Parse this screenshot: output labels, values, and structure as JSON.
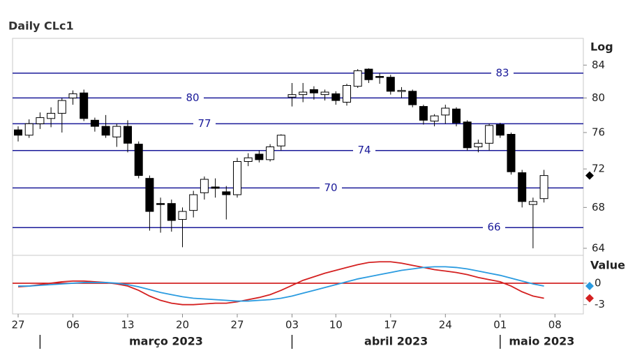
{
  "chart_data": [
    {
      "type": "candlestick",
      "title": "Daily CLc1",
      "y_label": "Log",
      "log_scale": true,
      "x": [
        "2023-02-27",
        "2023-02-28",
        "2023-03-01",
        "2023-03-02",
        "2023-03-03",
        "2023-03-06",
        "2023-03-07",
        "2023-03-08",
        "2023-03-09",
        "2023-03-10",
        "2023-03-13",
        "2023-03-14",
        "2023-03-15",
        "2023-03-16",
        "2023-03-17",
        "2023-03-20",
        "2023-03-21",
        "2023-03-22",
        "2023-03-23",
        "2023-03-24",
        "2023-03-27",
        "2023-03-28",
        "2023-03-29",
        "2023-03-30",
        "2023-03-31",
        "2023-04-03",
        "2023-04-04",
        "2023-04-05",
        "2023-04-06",
        "2023-04-10",
        "2023-04-11",
        "2023-04-12",
        "2023-04-13",
        "2023-04-14",
        "2023-04-17",
        "2023-04-18",
        "2023-04-19",
        "2023-04-20",
        "2023-04-21",
        "2023-04-24",
        "2023-04-25",
        "2023-04-26",
        "2023-04-27",
        "2023-04-28",
        "2023-05-01",
        "2023-05-02",
        "2023-05-03",
        "2023-05-04",
        "2023-05-05"
      ],
      "open": [
        76.3,
        75.7,
        77.0,
        77.6,
        78.2,
        80.0,
        80.6,
        77.4,
        76.7,
        75.5,
        76.7,
        74.7,
        71.0,
        68.4,
        68.4,
        66.8,
        67.7,
        69.5,
        70.1,
        69.6,
        69.3,
        72.8,
        73.6,
        73.0,
        74.5,
        80.1,
        80.4,
        81.0,
        80.4,
        80.5,
        79.5,
        81.4,
        83.5,
        82.6,
        82.5,
        80.8,
        80.8,
        79.0,
        77.3,
        78.0,
        78.7,
        77.2,
        74.4,
        74.8,
        76.9,
        75.8,
        71.6,
        68.3,
        68.9
      ],
      "high": [
        76.7,
        77.5,
        78.3,
        78.9,
        80.0,
        80.9,
        81.0,
        77.7,
        78.0,
        77.0,
        77.4,
        75.0,
        71.3,
        69.0,
        68.8,
        68.0,
        69.7,
        71.2,
        71.0,
        70.2,
        73.2,
        73.7,
        74.0,
        74.7,
        75.8,
        81.8,
        81.8,
        81.4,
        81.0,
        80.8,
        81.7,
        83.5,
        83.6,
        83.0,
        82.8,
        81.3,
        81.0,
        79.2,
        78.1,
        79.2,
        78.9,
        77.4,
        75.2,
        77.0,
        77.1,
        76.0,
        71.9,
        69.0,
        71.9
      ],
      "low": [
        75.0,
        75.4,
        76.4,
        76.6,
        76.0,
        79.2,
        77.3,
        76.1,
        75.4,
        74.4,
        73.8,
        71.0,
        65.7,
        65.5,
        65.6,
        64.1,
        67.0,
        68.8,
        69.0,
        66.8,
        69.0,
        72.3,
        72.7,
        72.8,
        74.0,
        79.0,
        79.5,
        79.8,
        79.7,
        79.2,
        79.1,
        81.2,
        81.8,
        81.7,
        80.4,
        80.0,
        78.9,
        76.9,
        76.7,
        77.0,
        76.7,
        74.0,
        73.8,
        74.0,
        75.4,
        71.4,
        68.0,
        64.0,
        68.5
      ],
      "close": [
        75.7,
        77.0,
        77.7,
        78.2,
        79.7,
        80.5,
        77.6,
        76.7,
        75.7,
        76.7,
        74.8,
        71.3,
        67.6,
        68.3,
        66.7,
        67.6,
        69.3,
        70.9,
        69.96,
        69.3,
        72.8,
        73.2,
        73.0,
        74.4,
        75.7,
        80.4,
        80.7,
        80.6,
        80.7,
        79.7,
        81.5,
        83.3,
        82.2,
        82.5,
        80.8,
        80.9,
        79.2,
        77.4,
        77.9,
        78.8,
        77.1,
        74.3,
        74.8,
        76.8,
        75.7,
        71.7,
        68.6,
        68.6,
        71.3
      ],
      "up_color": "#ffffff",
      "down_color": "#000000",
      "ylim": [
        63.4,
        87.4
      ],
      "yticks": [
        64,
        68,
        72,
        76,
        80,
        84
      ],
      "levels": [
        83,
        80,
        77,
        74,
        70,
        66
      ],
      "level_color": "#1a1a99",
      "xticks": [
        {
          "value": "2023-02-27",
          "label": "27"
        },
        {
          "value": "2023-03-06",
          "label": "06"
        },
        {
          "value": "2023-03-13",
          "label": "13"
        },
        {
          "value": "2023-03-20",
          "label": "20"
        },
        {
          "value": "2023-03-27",
          "label": "27"
        },
        {
          "value": "2023-04-03",
          "label": "03"
        },
        {
          "value": "2023-04-10",
          "label": "10"
        },
        {
          "value": "2023-04-17",
          "label": "17"
        },
        {
          "value": "2023-04-24",
          "label": "24"
        },
        {
          "value": "2023-05-01",
          "label": "01"
        },
        {
          "value": "2023-05-08",
          "label": "08"
        }
      ],
      "months": [
        {
          "value": "2023-03",
          "label": "março 2023"
        },
        {
          "value": "2023-04",
          "label": "abril 2023"
        },
        {
          "value": "2023-05",
          "label": "maio 2023"
        }
      ]
    },
    {
      "type": "line",
      "y_label": "Value",
      "series": [
        {
          "color": "#d42020",
          "values": [
            -0.5,
            -0.4,
            -0.2,
            0.0,
            0.2,
            0.3,
            0.3,
            0.2,
            0.1,
            -0.1,
            -0.4,
            -1.0,
            -1.8,
            -2.4,
            -2.8,
            -3.0,
            -3.0,
            -2.9,
            -2.8,
            -2.8,
            -2.6,
            -2.3,
            -2.0,
            -1.6,
            -1.0,
            -0.3,
            0.4,
            0.9,
            1.4,
            1.8,
            2.2,
            2.6,
            2.9,
            3.0,
            3.0,
            2.8,
            2.5,
            2.2,
            1.9,
            1.7,
            1.5,
            1.2,
            0.8,
            0.5,
            0.2,
            -0.4,
            -1.2,
            -1.8,
            -2.1
          ]
        },
        {
          "color": "#2a9be0",
          "values": [
            -0.4,
            -0.4,
            -0.3,
            -0.2,
            -0.1,
            0.0,
            0.1,
            0.1,
            0.1,
            0.0,
            -0.2,
            -0.5,
            -0.9,
            -1.3,
            -1.6,
            -1.9,
            -2.1,
            -2.2,
            -2.3,
            -2.4,
            -2.5,
            -2.5,
            -2.4,
            -2.3,
            -2.1,
            -1.8,
            -1.4,
            -1.0,
            -0.6,
            -0.2,
            0.2,
            0.6,
            0.9,
            1.2,
            1.5,
            1.8,
            2.0,
            2.2,
            2.3,
            2.3,
            2.2,
            2.0,
            1.7,
            1.4,
            1.1,
            0.7,
            0.3,
            -0.1,
            -0.4
          ]
        }
      ],
      "ylim": [
        -4.3,
        3.9
      ],
      "yticks": [
        0,
        -3
      ],
      "reference_line": {
        "value": 0,
        "color": "#cc0000"
      }
    }
  ]
}
